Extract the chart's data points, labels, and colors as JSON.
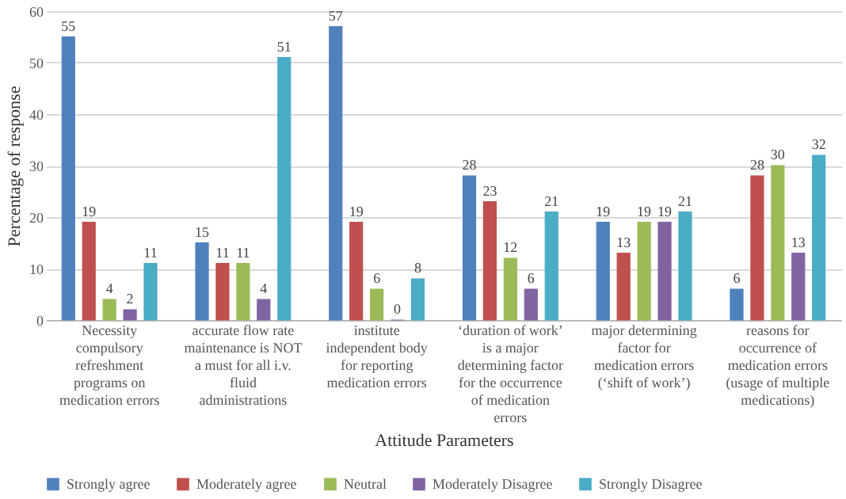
{
  "chart_data": {
    "type": "bar",
    "xlabel": "Attitude Parameters",
    "ylabel": "Percentage of response",
    "categories": [
      "Necessity compulsory refreshment programs on medication errors",
      "accurate flow rate maintenance is NOT a must for all i.v. fluid administrations",
      "institute independent body for reporting medication errors",
      "‘duration of work’ is a major determining factor for the occurrence of medication errors",
      "major determining factor for medication errors (‘shift of work’)",
      "reasons for occurrence of medication errors (usage of multiple medications)"
    ],
    "series": [
      {
        "name": "Strongly agree",
        "color": "#4f81bd",
        "values": [
          55,
          15,
          57,
          28,
          19,
          6
        ]
      },
      {
        "name": "Moderately agree",
        "color": "#c0504d",
        "values": [
          19,
          11,
          19,
          23,
          13,
          28
        ]
      },
      {
        "name": "Neutral",
        "color": "#9bbb59",
        "values": [
          4,
          11,
          6,
          12,
          19,
          30
        ]
      },
      {
        "name": "Moderately Disagree",
        "color": "#8064a2",
        "values": [
          2,
          4,
          0,
          6,
          19,
          13
        ]
      },
      {
        "name": "Strongly Disagree",
        "color": "#4bacc6",
        "values": [
          11,
          51,
          8,
          21,
          21,
          32
        ]
      }
    ],
    "ylim": [
      0,
      60
    ],
    "yticks": [
      0,
      10,
      20,
      30,
      40,
      50,
      60
    ],
    "grid": "y",
    "legend": "bottom",
    "data_labels": true
  }
}
